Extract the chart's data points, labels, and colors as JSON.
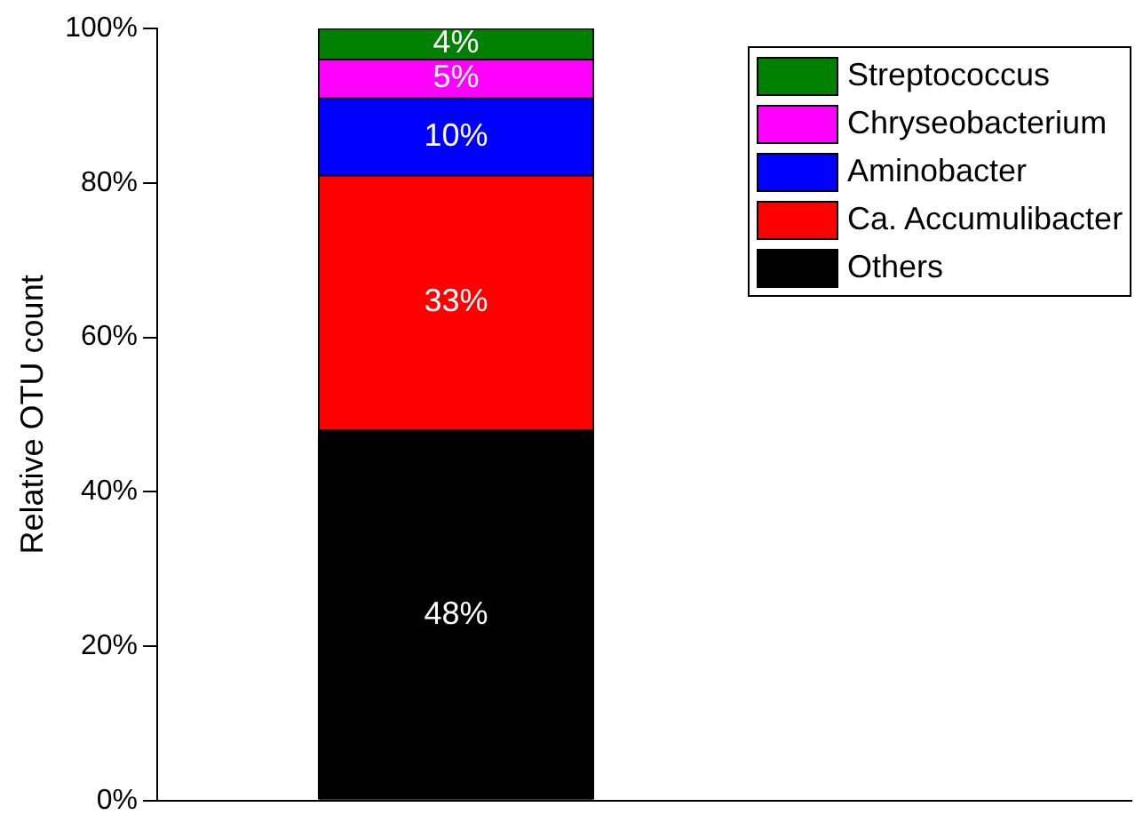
{
  "chart_data": {
    "type": "bar",
    "stacked": true,
    "ylabel": "Relative OTU count",
    "categories": [
      null
    ],
    "series": [
      {
        "name": "Others",
        "color": "#000000",
        "values": [
          48
        ]
      },
      {
        "name": "Ca. Accumulibacter",
        "color": "#ff0000",
        "values": [
          33
        ]
      },
      {
        "name": "Aminobacter",
        "color": "#0000ff",
        "values": [
          10
        ]
      },
      {
        "name": "Chryseobacterium",
        "color": "#ff00ff",
        "values": [
          5
        ]
      },
      {
        "name": "Streptococcus",
        "color": "#008000",
        "values": [
          4
        ]
      }
    ],
    "ylim": [
      0,
      100
    ],
    "yticks": [
      {
        "value": 0,
        "label": "0%"
      },
      {
        "value": 20,
        "label": "20%"
      },
      {
        "value": 40,
        "label": "40%"
      },
      {
        "value": 60,
        "label": "60%"
      },
      {
        "value": 80,
        "label": "80%"
      },
      {
        "value": 100,
        "label": "100%"
      }
    ],
    "value_labels": [
      [
        "48%"
      ],
      [
        "33%"
      ],
      [
        "10%"
      ],
      [
        "5%"
      ],
      [
        "4%"
      ]
    ],
    "grid": false,
    "legend": "top right"
  }
}
